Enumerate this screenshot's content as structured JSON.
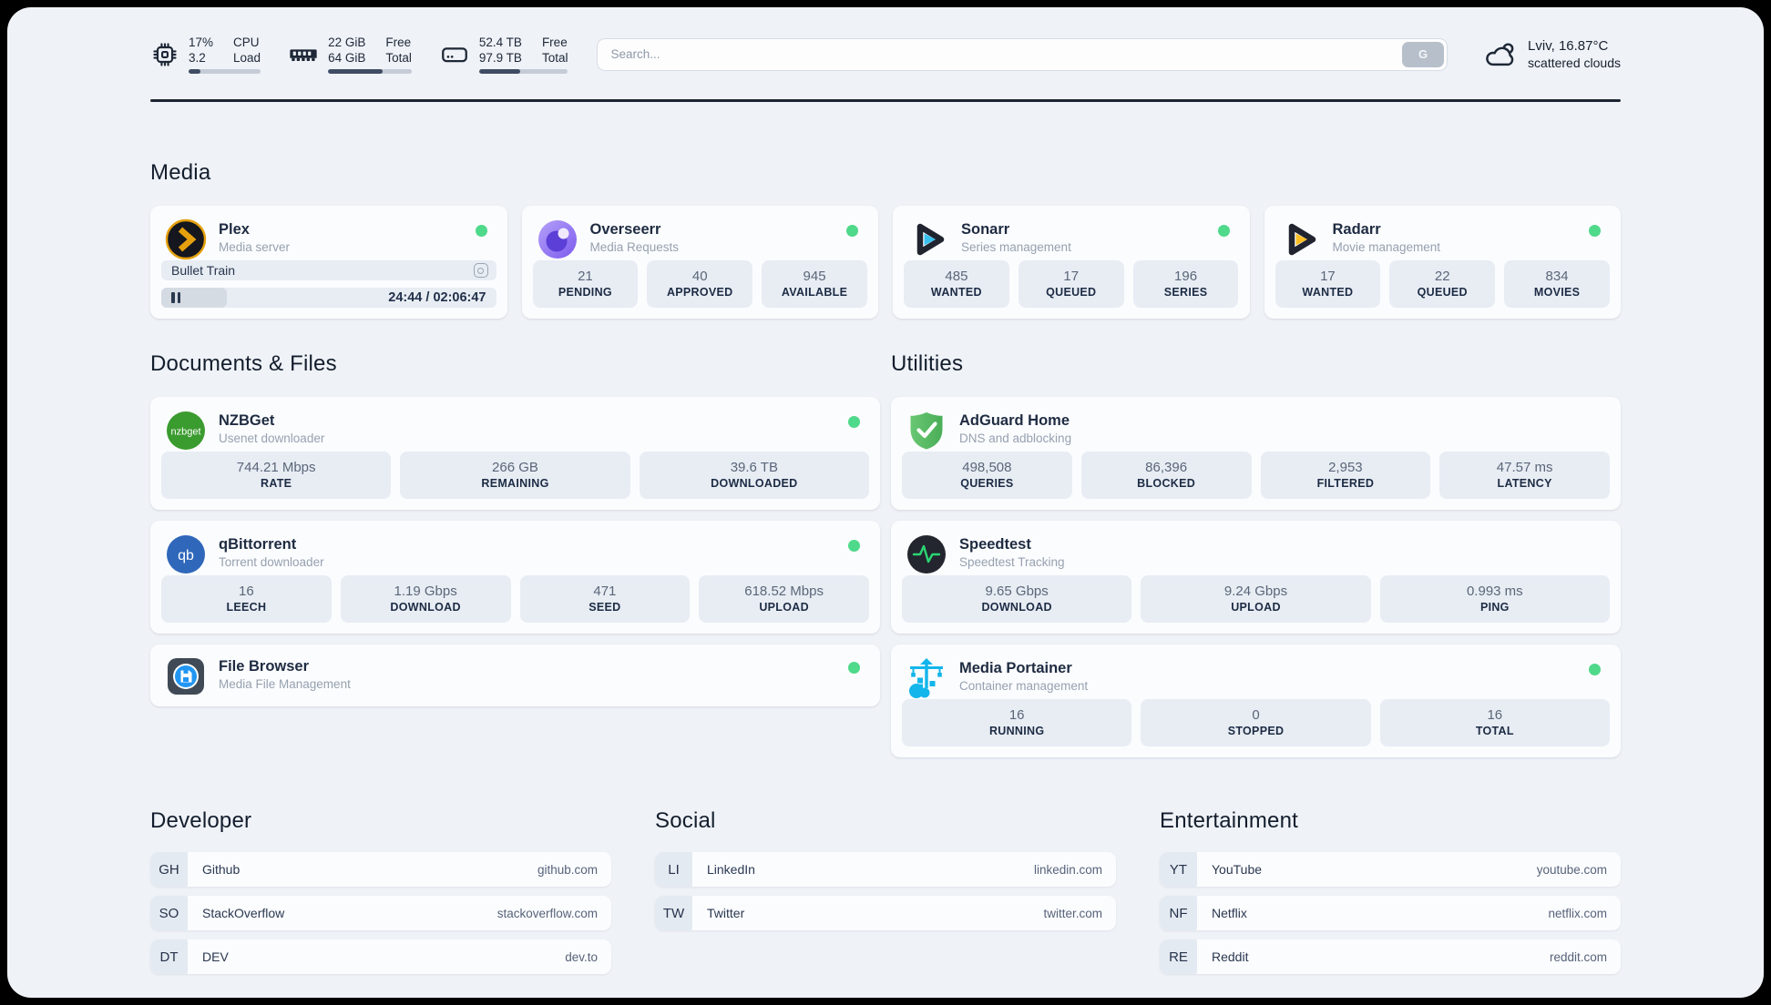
{
  "colors": {
    "status_green": "#4fd98a",
    "page_bg": "#eff2f7",
    "progress_fill": "#3e4d63",
    "plex_amber": "#e5a00d",
    "sonarr_cyan": "#38c1ef",
    "radarr_amber": "#fbbf24"
  },
  "header": {
    "widgets": [
      {
        "icon": "cpu-icon",
        "value1": "17%",
        "value2": "3.2",
        "label1": "CPU",
        "label2": "Load",
        "progress": 17
      },
      {
        "icon": "memory-icon",
        "value1": "22 GiB",
        "value2": "64 GiB",
        "label1": "Free",
        "label2": "Total",
        "progress": 65
      },
      {
        "icon": "disk-icon",
        "value1": "52.4 TB",
        "value2": "97.9 TB",
        "label1": "Free",
        "label2": "Total",
        "progress": 46
      }
    ],
    "search": {
      "placeholder": "Search...",
      "button_label": "G"
    },
    "weather": {
      "location": "Lviv, 16.87°C",
      "condition": "scattered clouds"
    }
  },
  "media": {
    "title": "Media",
    "plex": {
      "name": "Plex",
      "subtitle": "Media server",
      "now_playing": "Bullet Train",
      "time_display": "24:44 / 02:06:47",
      "progress_pct": 19.5
    },
    "overseerr": {
      "name": "Overseerr",
      "subtitle": "Media Requests",
      "stats": [
        {
          "value": "21",
          "label": "PENDING"
        },
        {
          "value": "40",
          "label": "APPROVED"
        },
        {
          "value": "945",
          "label": "AVAILABLE"
        }
      ]
    },
    "sonarr": {
      "name": "Sonarr",
      "subtitle": "Series management",
      "stats": [
        {
          "value": "485",
          "label": "WANTED"
        },
        {
          "value": "17",
          "label": "QUEUED"
        },
        {
          "value": "196",
          "label": "SERIES"
        }
      ]
    },
    "radarr": {
      "name": "Radarr",
      "subtitle": "Movie management",
      "stats": [
        {
          "value": "17",
          "label": "WANTED"
        },
        {
          "value": "22",
          "label": "QUEUED"
        },
        {
          "value": "834",
          "label": "MOVIES"
        }
      ]
    }
  },
  "documents": {
    "title": "Documents & Files",
    "nzbget": {
      "name": "NZBGet",
      "subtitle": "Usenet downloader",
      "icon_text": "nzbget",
      "stats": [
        {
          "value": "744.21 Mbps",
          "label": "RATE"
        },
        {
          "value": "266 GB",
          "label": "REMAINING"
        },
        {
          "value": "39.6 TB",
          "label": "DOWNLOADED"
        }
      ]
    },
    "qbittorrent": {
      "name": "qBittorrent",
      "subtitle": "Torrent downloader",
      "icon_text": "qb",
      "stats": [
        {
          "value": "16",
          "label": "LEECH"
        },
        {
          "value": "1.19 Gbps",
          "label": "DOWNLOAD"
        },
        {
          "value": "471",
          "label": "SEED"
        },
        {
          "value": "618.52 Mbps",
          "label": "UPLOAD"
        }
      ]
    },
    "filebrowser": {
      "name": "File Browser",
      "subtitle": "Media File Management"
    }
  },
  "utilities": {
    "title": "Utilities",
    "adguard": {
      "name": "AdGuard Home",
      "subtitle": "DNS and adblocking",
      "stats": [
        {
          "value": "498,508",
          "label": "QUERIES"
        },
        {
          "value": "86,396",
          "label": "BLOCKED"
        },
        {
          "value": "2,953",
          "label": "FILTERED"
        },
        {
          "value": "47.57 ms",
          "label": "LATENCY"
        }
      ]
    },
    "speedtest": {
      "name": "Speedtest",
      "subtitle": "Speedtest Tracking",
      "stats": [
        {
          "value": "9.65 Gbps",
          "label": "DOWNLOAD"
        },
        {
          "value": "9.24 Gbps",
          "label": "UPLOAD"
        },
        {
          "value": "0.993 ms",
          "label": "PING"
        }
      ]
    },
    "portainer": {
      "name": "Media Portainer",
      "subtitle": "Container management",
      "stats": [
        {
          "value": "16",
          "label": "RUNNING"
        },
        {
          "value": "0",
          "label": "STOPPED"
        },
        {
          "value": "16",
          "label": "TOTAL"
        }
      ]
    }
  },
  "bookmarks": [
    {
      "title": "Developer",
      "items": [
        {
          "abbr": "GH",
          "name": "Github",
          "url": "github.com"
        },
        {
          "abbr": "SO",
          "name": "StackOverflow",
          "url": "stackoverflow.com"
        },
        {
          "abbr": "DT",
          "name": "DEV",
          "url": "dev.to"
        }
      ]
    },
    {
      "title": "Social",
      "items": [
        {
          "abbr": "LI",
          "name": "LinkedIn",
          "url": "linkedin.com"
        },
        {
          "abbr": "TW",
          "name": "Twitter",
          "url": "twitter.com"
        }
      ]
    },
    {
      "title": "Entertainment",
      "items": [
        {
          "abbr": "YT",
          "name": "YouTube",
          "url": "youtube.com"
        },
        {
          "abbr": "NF",
          "name": "Netflix",
          "url": "netflix.com"
        },
        {
          "abbr": "RE",
          "name": "Reddit",
          "url": "reddit.com"
        }
      ]
    }
  ]
}
